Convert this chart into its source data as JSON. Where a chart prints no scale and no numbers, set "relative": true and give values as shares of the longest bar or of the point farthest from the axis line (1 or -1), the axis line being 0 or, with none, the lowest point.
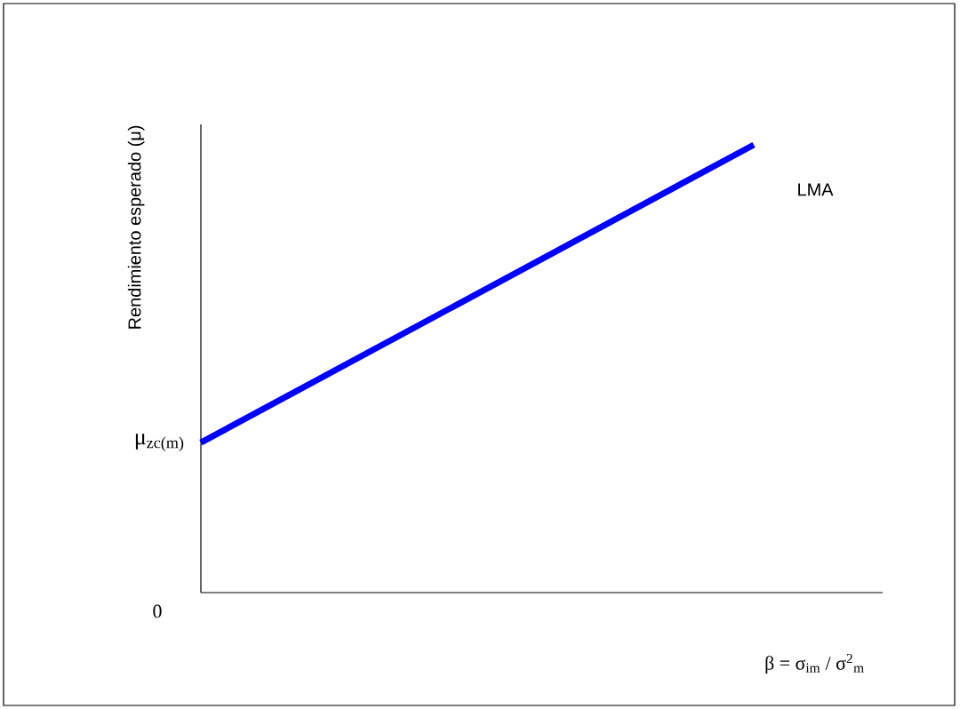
{
  "chart_data": {
    "type": "line",
    "relative": true,
    "categories": [
      null,
      null
    ],
    "values": [
      0.335,
      1
    ],
    "color": "#0000ff",
    "xlabel": "β = σ$_{im}$ / σ$^{2}$$_{m}$",
    "ylabel": "Rendimiento esperado (μ)",
    "annotations": [
      "μ$_{zc(m)}$",
      "0",
      "LMA"
    ]
  }
}
